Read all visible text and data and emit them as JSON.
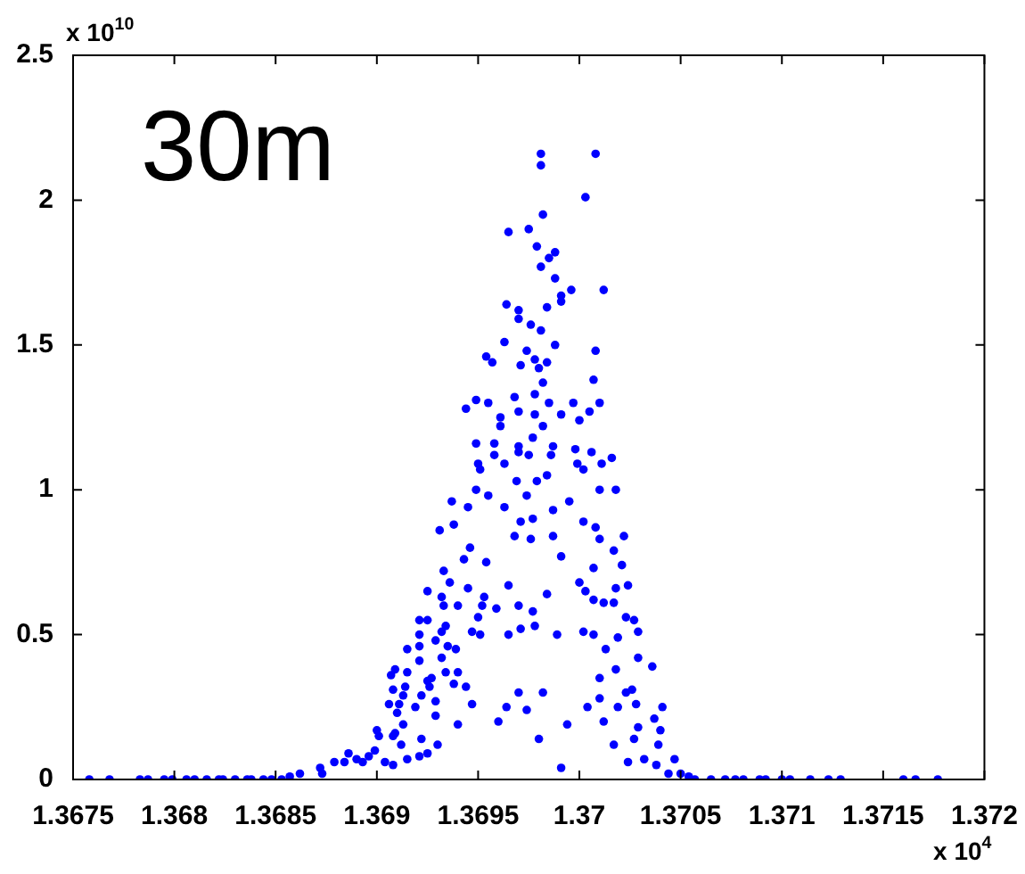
{
  "chart_data": {
    "type": "scatter",
    "title": "30m",
    "annotations": [
      "x 10$^{10}$",
      "x 10$^{4}$"
    ],
    "xlim": [
      1.3675,
      1.372
    ],
    "xticks": [
      1.3675,
      1.368,
      1.3685,
      1.369,
      1.3695,
      1.37,
      1.3705,
      1.371,
      1.3715,
      1.372
    ],
    "ylim": [
      0,
      2.5
    ],
    "yticks": [
      0,
      0.5,
      1,
      1.5,
      2,
      2.5
    ],
    "grid": false,
    "legend": false,
    "marker": "circle",
    "series": [
      {
        "color": "#0000ff",
        "x": [
          1.36981,
          1.37008,
          1.36981,
          1.37003,
          1.36982,
          1.36965,
          1.36975,
          1.36979,
          1.36988,
          1.36985,
          1.36981,
          1.36988,
          1.36996,
          1.37012,
          1.36991,
          1.36991,
          1.36964,
          1.3697,
          1.36984,
          1.3697,
          1.36976,
          1.36981,
          1.36963,
          1.36988,
          1.36954,
          1.36957,
          1.36974,
          1.36978,
          1.36984,
          1.36971,
          1.3698,
          1.37008,
          1.36982,
          1.37007,
          1.36949,
          1.36955,
          1.36944,
          1.36968,
          1.36978,
          1.36985,
          1.36997,
          1.3701,
          1.3697,
          1.36978,
          1.36991,
          1.37005,
          1.36961,
          1.36961,
          1.36982,
          1.37,
          1.36949,
          1.36958,
          1.3697,
          1.36977,
          1.36987,
          1.36998,
          1.37006,
          1.37016,
          1.37011,
          1.3697,
          1.36958,
          1.36975,
          1.36986,
          1.3695,
          1.36963,
          1.36999,
          1.37002,
          1.36951,
          1.36937,
          1.36931,
          1.36938,
          1.36945,
          1.36949,
          1.36955,
          1.36963,
          1.36969,
          1.36974,
          1.36979,
          1.36984,
          1.36987,
          1.36995,
          1.3701,
          1.37018,
          1.37002,
          1.37008,
          1.3701,
          1.37022,
          1.36977,
          1.36971,
          1.36968,
          1.36976,
          1.36987,
          1.36991,
          1.37017,
          1.37021,
          1.37024,
          1.37018,
          1.37007,
          1.37,
          1.37003,
          1.37007,
          1.37012,
          1.37017,
          1.37023,
          1.37027,
          1.37029,
          1.37002,
          1.37007,
          1.37019,
          1.36989,
          1.36984,
          1.36977,
          1.36978,
          1.36971,
          1.36965,
          1.3697,
          1.36965,
          1.36959,
          1.36951,
          1.36947,
          1.3695,
          1.36952,
          1.36953,
          1.36945,
          1.36943,
          1.36946,
          1.36954,
          1.3694,
          1.36936,
          1.36933,
          1.36925,
          1.36932,
          1.36933,
          1.36925,
          1.36921,
          1.36921,
          1.36934,
          1.36932,
          1.36929,
          1.36935,
          1.36939,
          1.36921,
          1.36915,
          1.36921,
          1.36915,
          1.36909,
          1.36907,
          1.36932,
          1.36927,
          1.36925,
          1.36926,
          1.36934,
          1.3694,
          1.36938,
          1.36944,
          1.36914,
          1.36908,
          1.36913,
          1.36922,
          1.36929,
          1.36906,
          1.36911,
          1.36919,
          1.3691,
          1.36929,
          1.36913,
          1.36909,
          1.369,
          1.36908,
          1.36901,
          1.36912,
          1.36922,
          1.3693,
          1.36925,
          1.36921,
          1.36915,
          1.36908,
          1.36904,
          1.36899,
          1.36896,
          1.36893,
          1.36886,
          1.3689,
          1.36884,
          1.36879,
          1.36872,
          1.36873,
          1.36862,
          1.36857,
          1.3694,
          1.36947,
          1.3696,
          1.36964,
          1.3697,
          1.36974,
          1.36982,
          1.3698,
          1.36994,
          1.36991,
          1.37004,
          1.37012,
          1.3701,
          1.37017,
          1.37019,
          1.37023,
          1.37028,
          1.37029,
          1.37027,
          1.37037,
          1.37041,
          1.3704,
          1.37039,
          1.37024,
          1.37032,
          1.37038,
          1.37047,
          1.37044,
          1.3705,
          1.37013,
          1.37018,
          1.3701,
          1.37029,
          1.37036,
          1.37026,
          1.36758,
          1.36768,
          1.36783,
          1.36787,
          1.36795,
          1.36799,
          1.36806,
          1.3681,
          1.36816,
          1.36822,
          1.36824,
          1.3683,
          1.36836,
          1.36838,
          1.36844,
          1.36848,
          1.36853,
          1.37054,
          1.37057,
          1.37065,
          1.37072,
          1.37077,
          1.37081,
          1.37089,
          1.37092,
          1.371,
          1.37104,
          1.37114,
          1.37123,
          1.37129,
          1.3716,
          1.37166,
          1.37177
        ],
        "values": [
          2.16,
          2.16,
          2.12,
          2.01,
          1.95,
          1.89,
          1.9,
          1.84,
          1.82,
          1.8,
          1.77,
          1.73,
          1.69,
          1.69,
          1.67,
          1.65,
          1.64,
          1.62,
          1.63,
          1.59,
          1.57,
          1.55,
          1.51,
          1.5,
          1.46,
          1.44,
          1.48,
          1.45,
          1.44,
          1.43,
          1.42,
          1.48,
          1.37,
          1.38,
          1.31,
          1.3,
          1.28,
          1.32,
          1.33,
          1.3,
          1.3,
          1.3,
          1.27,
          1.26,
          1.26,
          1.27,
          1.25,
          1.22,
          1.22,
          1.24,
          1.16,
          1.16,
          1.15,
          1.18,
          1.15,
          1.14,
          1.13,
          1.11,
          1.09,
          1.13,
          1.12,
          1.12,
          1.12,
          1.09,
          1.09,
          1.09,
          1.07,
          1.07,
          0.96,
          0.86,
          0.88,
          0.94,
          1.0,
          0.98,
          0.94,
          1.03,
          0.98,
          1.03,
          1.05,
          0.93,
          0.96,
          1.0,
          1.0,
          0.89,
          0.87,
          0.83,
          0.84,
          0.9,
          0.89,
          0.84,
          0.83,
          0.84,
          0.77,
          0.79,
          0.74,
          0.67,
          0.66,
          0.73,
          0.68,
          0.65,
          0.62,
          0.61,
          0.61,
          0.56,
          0.55,
          0.51,
          0.51,
          0.5,
          0.49,
          0.5,
          0.64,
          0.58,
          0.53,
          0.52,
          0.5,
          0.6,
          0.67,
          0.59,
          0.5,
          0.51,
          0.56,
          0.6,
          0.63,
          0.66,
          0.76,
          0.8,
          0.75,
          0.6,
          0.68,
          0.72,
          0.65,
          0.63,
          0.6,
          0.55,
          0.55,
          0.5,
          0.53,
          0.51,
          0.48,
          0.46,
          0.45,
          0.46,
          0.45,
          0.41,
          0.37,
          0.38,
          0.36,
          0.42,
          0.35,
          0.34,
          0.32,
          0.37,
          0.37,
          0.33,
          0.32,
          0.32,
          0.31,
          0.29,
          0.29,
          0.27,
          0.26,
          0.26,
          0.25,
          0.23,
          0.22,
          0.19,
          0.16,
          0.17,
          0.15,
          0.15,
          0.12,
          0.14,
          0.12,
          0.09,
          0.08,
          0.07,
          0.05,
          0.06,
          0.1,
          0.08,
          0.06,
          0.09,
          0.07,
          0.06,
          0.06,
          0.04,
          0.02,
          0.02,
          0.01,
          0.19,
          0.26,
          0.2,
          0.25,
          0.3,
          0.24,
          0.3,
          0.14,
          0.19,
          0.04,
          0.25,
          0.2,
          0.28,
          0.12,
          0.25,
          0.3,
          0.26,
          0.18,
          0.14,
          0.21,
          0.25,
          0.17,
          0.12,
          0.06,
          0.07,
          0.05,
          0.07,
          0.02,
          0.02,
          0.45,
          0.38,
          0.35,
          0.42,
          0.39,
          0.31,
          0,
          0,
          0,
          0,
          0,
          0,
          0,
          0,
          0,
          0,
          0,
          0,
          0,
          0,
          0,
          0,
          0,
          0.01,
          0,
          0,
          0,
          0,
          0,
          0,
          0,
          0,
          0,
          0,
          0,
          0,
          0,
          0,
          0
        ]
      }
    ]
  }
}
